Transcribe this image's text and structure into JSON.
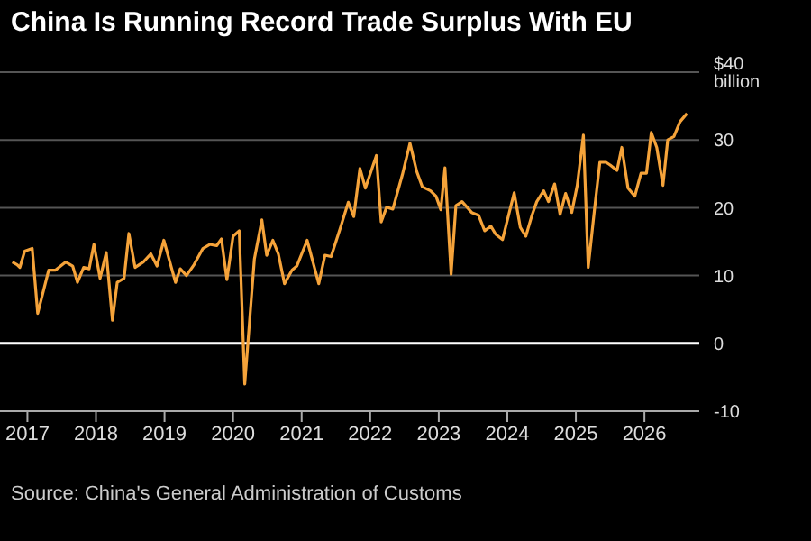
{
  "chart_data": {
    "type": "line",
    "title": "China Is Running Record Trade Surplus With EU",
    "annotations": [
      "Source: China's General Administration of Customs"
    ],
    "x": [
      2016.78,
      2016.85,
      2016.89,
      2016.96,
      2017.07,
      2017.15,
      2017.31,
      2017.41,
      2017.56,
      2017.66,
      2017.73,
      2017.82,
      2017.9,
      2017.97,
      2018.06,
      2018.15,
      2018.24,
      2018.31,
      2018.41,
      2018.48,
      2018.57,
      2018.69,
      2018.8,
      2018.89,
      2018.99,
      2019.16,
      2019.23,
      2019.32,
      2019.43,
      2019.56,
      2019.66,
      2019.76,
      2019.83,
      2019.91,
      2020.0,
      2020.09,
      2020.17,
      2020.31,
      2020.42,
      2020.49,
      2020.58,
      2020.66,
      2020.75,
      2020.86,
      2020.93,
      2021.08,
      2021.25,
      2021.34,
      2021.43,
      2021.57,
      2021.68,
      2021.76,
      2021.85,
      2021.93,
      2022.09,
      2022.16,
      2022.24,
      2022.33,
      2022.47,
      2022.58,
      2022.68,
      2022.76,
      2022.88,
      2022.96,
      2023.03,
      2023.09,
      2023.18,
      2023.25,
      2023.34,
      2023.48,
      2023.58,
      2023.67,
      2023.76,
      2023.83,
      2023.93,
      2024.1,
      2024.19,
      2024.27,
      2024.36,
      2024.43,
      2024.53,
      2024.6,
      2024.69,
      2024.77,
      2024.85,
      2024.94,
      2025.02,
      2025.11,
      2025.18,
      2025.28,
      2025.35,
      2025.44,
      2025.5,
      2025.6,
      2025.67,
      2025.76,
      2025.86,
      2025.95,
      2026.03,
      2026.1,
      2026.18,
      2026.27,
      2026.34,
      2026.43,
      2026.52,
      2026.62
    ],
    "series": [
      {
        "color": "#f5a33a",
        "values": [
          12,
          11.6,
          11.2,
          13.6,
          14,
          4.4,
          10.8,
          10.8,
          12,
          11.4,
          9,
          11.2,
          11,
          14.6,
          9.6,
          13.4,
          3.4,
          9,
          9.6,
          16.2,
          11.2,
          12,
          13.2,
          11.4,
          15.2,
          9,
          11,
          10,
          11.6,
          14,
          14.6,
          14.4,
          15.4,
          9.4,
          15.8,
          16.6,
          -6,
          12.4,
          18.2,
          13,
          15.2,
          13.2,
          8.8,
          10.8,
          11.4,
          15.2,
          8.8,
          13,
          12.8,
          17.2,
          20.8,
          18.7,
          25.8,
          22.9,
          27.7,
          17.9,
          20.1,
          19.8,
          24.9,
          29.5,
          25.3,
          23.1,
          22.5,
          21.7,
          19.7,
          25.9,
          10.2,
          20.3,
          20.9,
          19.3,
          18.9,
          16.6,
          17.3,
          16.1,
          15.3,
          22.2,
          17.1,
          15.8,
          18.9,
          20.9,
          22.5,
          20.9,
          23.5,
          19,
          22.1,
          19.3,
          23.3,
          30.7,
          11.2,
          20.5,
          26.7,
          26.7,
          26.3,
          25.5,
          28.9,
          22.9,
          21.7,
          25.1,
          25.1,
          31.1,
          28.9,
          23.3,
          30,
          30.5,
          32.7,
          33.9
        ]
      }
    ],
    "xlim": [
      2016.6,
      2026.8
    ],
    "xticks": [
      2017,
      2018,
      2019,
      2020,
      2021,
      2022,
      2023,
      2024,
      2025,
      2026
    ],
    "ylim": [
      -10,
      40
    ],
    "yticks": [
      {
        "value": 40,
        "label": "$40 billion"
      },
      30,
      20,
      10,
      0,
      -10
    ],
    "ref_lines": [
      {
        "axis": "y",
        "value": 0,
        "color": "#ffffff"
      }
    ],
    "grid": "y",
    "marker": "none",
    "line_style": "solid"
  }
}
